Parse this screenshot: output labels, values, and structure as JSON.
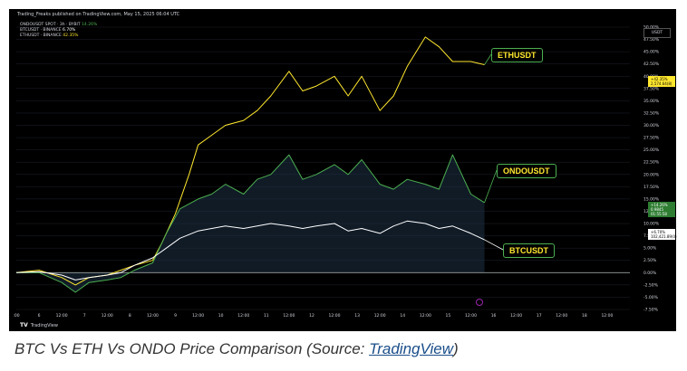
{
  "header": "Trading_Freaks published on TradingView.com, May 15, 2025 06:04 UTC",
  "legend": [
    {
      "name": "ONDOUSDT SPOT · 3h · BYBIT",
      "value": "14.26%",
      "cls": "val-green"
    },
    {
      "name": "BTCUSDT · BINANCE",
      "value": "6.70%",
      "cls": "val-white"
    },
    {
      "name": "ETHUSDT · BINANCE",
      "value": "42.35%",
      "cls": "val-yellow"
    }
  ],
  "currency": "USDT",
  "brand": "TradingView",
  "caption_text": "BTC Vs ETH Vs ONDO Price Comparison (Source: ",
  "caption_link": "TradingView",
  "caption_end": ")",
  "tags": {
    "eth": "ETHUSDT",
    "ondo": "ONDOUSDT",
    "btc": "BTCUSDT"
  },
  "price_tags": [
    {
      "lines": [
        "+42.35%",
        "2,574.64(8)"
      ],
      "bg": "#ffe72e"
    },
    {
      "lines": [
        "+14.26%",
        "0.9845",
        "01:55:58"
      ],
      "bg": "#2e7d32",
      "fg": "#ffffff"
    },
    {
      "lines": [
        "+6.70%",
        "102,421.89(0)"
      ],
      "bg": "#ffffff"
    }
  ],
  "colors": {
    "eth": "#ffe72e",
    "ondo": "#4caf50",
    "btc": "#ffffff",
    "grid": "#1e222d",
    "axis_text": "#d1d4dc"
  },
  "chart_data": {
    "type": "line",
    "y_unit": "%",
    "ylim": [
      -7.5,
      50
    ],
    "y_ticks": [
      "50.00%",
      "47.50%",
      "45.00%",
      "42.50%",
      "40.00%",
      "37.50%",
      "35.00%",
      "32.50%",
      "30.00%",
      "27.50%",
      "25.00%",
      "22.50%",
      "20.00%",
      "17.50%",
      "15.00%",
      "12.50%",
      "10.00%",
      "7.50%",
      "5.00%",
      "2.50%",
      "0.00%",
      "-2.50%",
      "-5.00%",
      "-7.50%"
    ],
    "x_ticks": [
      ":00",
      "6",
      "12:00",
      "7",
      "12:00",
      "8",
      "12:00",
      "9",
      "12:00",
      "10",
      "12:00",
      "11",
      "12:00",
      "12",
      "12:00",
      "13",
      "12:00",
      "14",
      "12:00",
      "15",
      "12:00",
      "16",
      "12:00",
      "17",
      "12:00",
      "18",
      "12:00"
    ],
    "x_range_days": [
      5,
      18.5
    ],
    "series": [
      {
        "name": "ETHUSDT",
        "color": "#ffe72e",
        "x": [
          5.0,
          5.5,
          6.0,
          6.3,
          6.6,
          7.0,
          7.3,
          7.6,
          8.0,
          8.2,
          8.5,
          8.8,
          9.0,
          9.3,
          9.6,
          10.0,
          10.3,
          10.6,
          11.0,
          11.3,
          11.6,
          12.0,
          12.3,
          12.6,
          13.0,
          13.3,
          13.6,
          14.0,
          14.3,
          14.6,
          15.0,
          15.3
        ],
        "y": [
          0.0,
          0.5,
          -1.0,
          -2.5,
          -1.0,
          -0.5,
          0.5,
          1.5,
          2.5,
          6.0,
          12.0,
          20.0,
          26.0,
          28.0,
          30.0,
          31.0,
          33.0,
          36.0,
          41.0,
          37.0,
          38.0,
          40.0,
          36.0,
          40.0,
          33.0,
          36.0,
          42.0,
          48.0,
          46.0,
          43.0,
          43.0,
          42.35
        ]
      },
      {
        "name": "ONDOUSDT",
        "color": "#4caf50",
        "x": [
          5.0,
          5.5,
          6.0,
          6.3,
          6.6,
          7.0,
          7.3,
          7.6,
          8.0,
          8.3,
          8.6,
          9.0,
          9.3,
          9.6,
          10.0,
          10.3,
          10.6,
          11.0,
          11.3,
          11.6,
          12.0,
          12.3,
          12.6,
          13.0,
          13.3,
          13.6,
          14.0,
          14.3,
          14.6,
          15.0,
          15.3
        ],
        "y": [
          0.0,
          0.0,
          -2.0,
          -4.0,
          -2.0,
          -1.5,
          -1.0,
          0.5,
          2.0,
          8.0,
          13.0,
          15.0,
          16.0,
          18.0,
          16.0,
          19.0,
          20.0,
          24.0,
          19.0,
          20.0,
          22.0,
          20.0,
          23.0,
          18.0,
          17.0,
          19.0,
          18.0,
          17.0,
          24.0,
          16.0,
          14.26
        ]
      },
      {
        "name": "BTCUSDT",
        "color": "#ffffff",
        "x": [
          5.0,
          5.5,
          6.0,
          6.3,
          6.6,
          7.0,
          7.3,
          7.6,
          8.0,
          8.3,
          8.6,
          9.0,
          9.3,
          9.6,
          10.0,
          10.3,
          10.6,
          11.0,
          11.3,
          11.6,
          12.0,
          12.3,
          12.6,
          13.0,
          13.3,
          13.6,
          14.0,
          14.3,
          14.6,
          15.0,
          15.3
        ],
        "y": [
          0.0,
          0.2,
          -0.5,
          -1.5,
          -1.0,
          -0.5,
          0.0,
          1.5,
          3.0,
          5.0,
          7.0,
          8.5,
          9.0,
          9.5,
          9.0,
          9.5,
          10.0,
          9.5,
          9.0,
          9.5,
          10.0,
          8.5,
          9.0,
          8.0,
          9.5,
          10.5,
          10.0,
          9.0,
          9.5,
          8.0,
          6.7
        ]
      }
    ]
  }
}
